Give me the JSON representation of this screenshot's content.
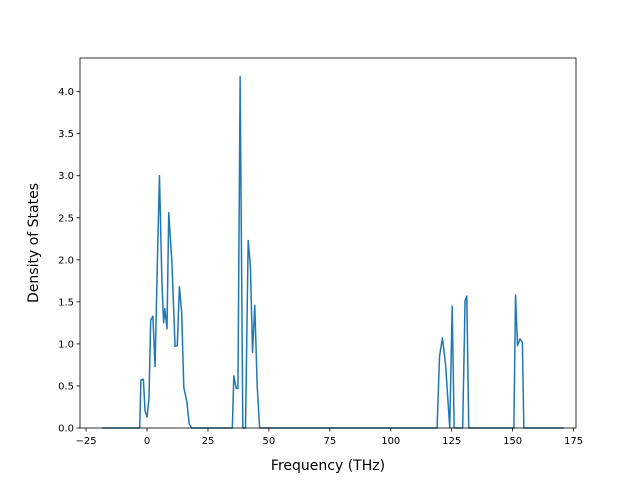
{
  "chart_data": {
    "type": "line",
    "title": "",
    "xlabel": "Frequency (THz)",
    "ylabel": "Density of States",
    "xlim": [
      -27.5,
      176
    ],
    "ylim": [
      0,
      4.4
    ],
    "xticks": [
      -25,
      0,
      25,
      50,
      75,
      100,
      125,
      150,
      175
    ],
    "yticks": [
      0.0,
      0.5,
      1.0,
      1.5,
      2.0,
      2.5,
      3.0,
      3.5,
      4.0
    ],
    "xtick_labels": [
      "−25",
      "0",
      "25",
      "50",
      "75",
      "100",
      "125",
      "150",
      "175"
    ],
    "ytick_labels": [
      "0.0",
      "0.5",
      "1.0",
      "1.5",
      "2.0",
      "2.5",
      "3.0",
      "3.5",
      "4.0"
    ],
    "grid": false,
    "legend": "none",
    "series": [
      {
        "color": "#1f77b4",
        "points": [
          [
            -18.5,
            0.0
          ],
          [
            -3.0,
            0.0
          ],
          [
            -2.5,
            0.57
          ],
          [
            -1.5,
            0.58
          ],
          [
            -0.8,
            0.2
          ],
          [
            0.0,
            0.13
          ],
          [
            0.8,
            0.35
          ],
          [
            1.5,
            1.28
          ],
          [
            2.4,
            1.33
          ],
          [
            3.3,
            0.73
          ],
          [
            4.3,
            2.05
          ],
          [
            5.1,
            3.0
          ],
          [
            6.1,
            1.75
          ],
          [
            6.8,
            1.25
          ],
          [
            7.3,
            1.42
          ],
          [
            8.2,
            1.18
          ],
          [
            8.9,
            2.56
          ],
          [
            10.2,
            1.98
          ],
          [
            11.5,
            0.97
          ],
          [
            12.4,
            0.98
          ],
          [
            13.3,
            1.68
          ],
          [
            14.2,
            1.38
          ],
          [
            15.1,
            0.48
          ],
          [
            16.3,
            0.32
          ],
          [
            17.3,
            0.05
          ],
          [
            18.3,
            0.0
          ],
          [
            35.0,
            0.0
          ],
          [
            35.6,
            0.62
          ],
          [
            36.6,
            0.47
          ],
          [
            37.3,
            0.47
          ],
          [
            38.2,
            4.18
          ],
          [
            39.3,
            0.0
          ],
          [
            40.4,
            0.0
          ],
          [
            41.5,
            2.23
          ],
          [
            42.4,
            1.93
          ],
          [
            43.3,
            0.9
          ],
          [
            44.2,
            1.46
          ],
          [
            45.2,
            0.5
          ],
          [
            46.2,
            0.0
          ],
          [
            119.0,
            0.0
          ],
          [
            120.0,
            0.85
          ],
          [
            121.2,
            1.07
          ],
          [
            122.5,
            0.75
          ],
          [
            124.2,
            0.0
          ],
          [
            125.2,
            1.45
          ],
          [
            126.0,
            0.0
          ],
          [
            129.5,
            0.0
          ],
          [
            130.5,
            1.52
          ],
          [
            131.2,
            1.57
          ],
          [
            132.0,
            0.0
          ],
          [
            150.5,
            0.0
          ],
          [
            151.2,
            1.58
          ],
          [
            152.0,
            0.98
          ],
          [
            153.0,
            1.06
          ],
          [
            154.0,
            1.02
          ],
          [
            154.6,
            0.0
          ],
          [
            171.0,
            0.0
          ]
        ]
      }
    ]
  }
}
